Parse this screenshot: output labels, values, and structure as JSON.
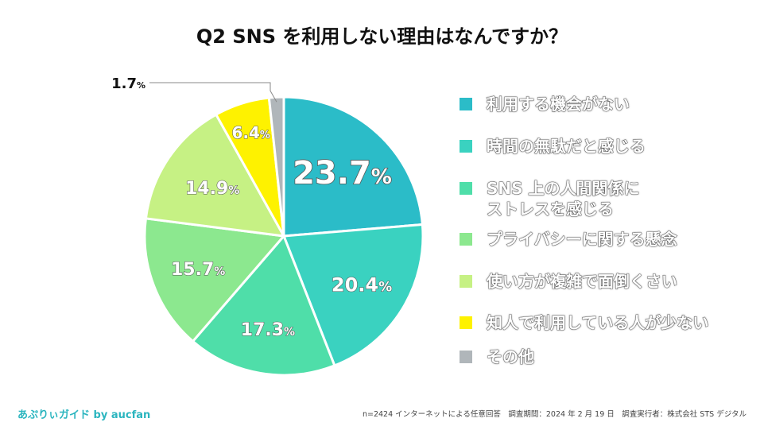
{
  "title": "Q2 SNS を利用しない理由はなんですか？",
  "chart_data": {
    "type": "pie",
    "title": "Q2 SNS を利用しない理由はなんですか？",
    "unit": "%",
    "slices": [
      {
        "label": "利用する機会がない",
        "value": 23.7,
        "display": "23.7",
        "color": "#2bbcc8"
      },
      {
        "label": "時間の無駄だと感じる",
        "value": 20.4,
        "display": "20.4",
        "color": "#3ad2c0"
      },
      {
        "label": "SNS 上の人間関係に\nストレスを感じる",
        "value": 17.3,
        "display": "17.3",
        "color": "#4fdea9"
      },
      {
        "label": "プライバシーに関する懸念",
        "value": 15.7,
        "display": "15.7",
        "color": "#8ce88f"
      },
      {
        "label": "使い方が複雑で面倒くさい",
        "value": 14.9,
        "display": "14.9",
        "color": "#c6f184"
      },
      {
        "label": "知人で利用している人が少ない",
        "value": 6.4,
        "display": "6.4",
        "color": "#fef200"
      },
      {
        "label": "その他",
        "value": 1.7,
        "display": "1.7",
        "color": "#b0b6ba"
      }
    ]
  },
  "footer": {
    "brand": "あぷりぃガイド by aucfan",
    "note": "n=2424 インターネットによる任意回答　調査期間：2024 年 2 月 19 日　調査実行者：株式会社 STS デジタル"
  }
}
